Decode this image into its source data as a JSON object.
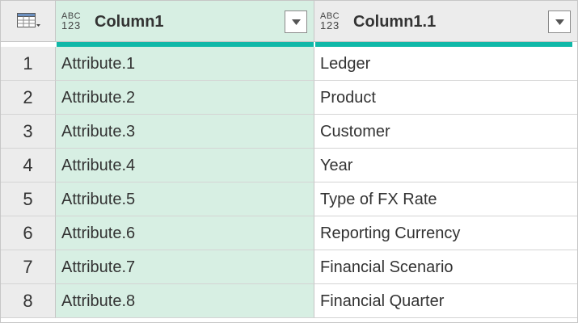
{
  "columns": [
    {
      "type_label_top": "ABC",
      "type_label_bottom": "123",
      "title": "Column1",
      "icon": "chevron-down-icon"
    },
    {
      "type_label_top": "ABC",
      "type_label_bottom": "123",
      "title": "Column1.1",
      "icon": "chevron-down-icon"
    }
  ],
  "corner_icon": "table-icon",
  "colors": {
    "selected_column_bg": "#d7efe3",
    "quality_bar": "#10b8a8",
    "header_bg": "#ececec"
  },
  "rows": [
    {
      "num": "1",
      "c1": "Attribute.1",
      "c2": "Ledger"
    },
    {
      "num": "2",
      "c1": "Attribute.2",
      "c2": "Product"
    },
    {
      "num": "3",
      "c1": "Attribute.3",
      "c2": "Customer"
    },
    {
      "num": "4",
      "c1": "Attribute.4",
      "c2": "Year"
    },
    {
      "num": "5",
      "c1": "Attribute.5",
      "c2": "Type of FX Rate"
    },
    {
      "num": "6",
      "c1": "Attribute.6",
      "c2": "Reporting Currency"
    },
    {
      "num": "7",
      "c1": "Attribute.7",
      "c2": "Financial Scenario"
    },
    {
      "num": "8",
      "c1": "Attribute.8",
      "c2": "Financial Quarter"
    }
  ]
}
